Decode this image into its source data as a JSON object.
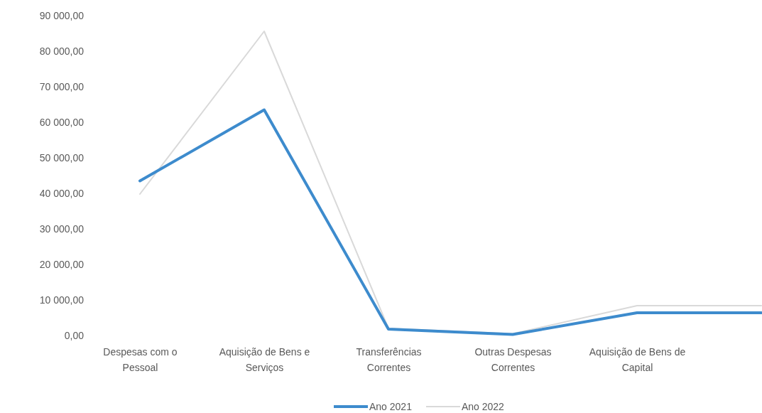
{
  "chart_data": {
    "type": "line",
    "categories": [
      "Despesas com o Pessoal",
      "Aquisição de Bens e Serviços",
      "Transferências Correntes",
      "Outras Despesas Correntes",
      "Aquisição de Bens de Capital",
      null
    ],
    "series": [
      {
        "name": "Ano 2021",
        "color": "#3d8bcd",
        "values": [
          43500,
          63500,
          1800,
          300,
          6400,
          6400
        ]
      },
      {
        "name": "Ano 2022",
        "color": "#d9d9d9",
        "values": [
          39800,
          85600,
          2000,
          500,
          8400,
          8400
        ]
      }
    ],
    "ylim": [
      0,
      90000
    ],
    "yticks": [
      {
        "value": 0,
        "label": "0,00"
      },
      {
        "value": 10000,
        "label": "10 000,00"
      },
      {
        "value": 20000,
        "label": "20 000,00"
      },
      {
        "value": 30000,
        "label": "30 000,00"
      },
      {
        "value": 40000,
        "label": "40 000,00"
      },
      {
        "value": 50000,
        "label": "50 000,00"
      },
      {
        "value": 60000,
        "label": "60 000,00"
      },
      {
        "value": 70000,
        "label": "70 000,00"
      },
      {
        "value": 80000,
        "label": "80 000,00"
      },
      {
        "value": 90000,
        "label": "90 000,00"
      }
    ],
    "legend": "bottom"
  }
}
